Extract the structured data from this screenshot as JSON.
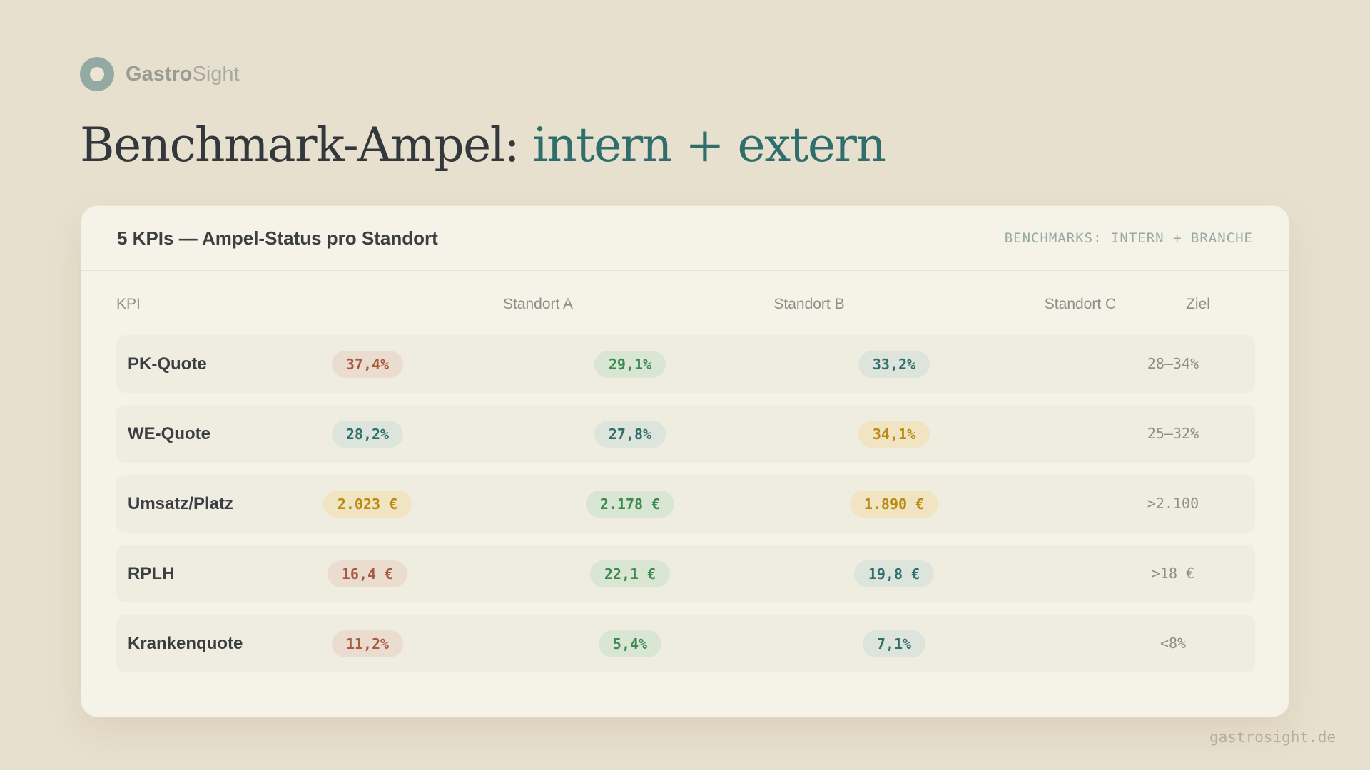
{
  "brand": {
    "name_bold": "Gastro",
    "name_light": "Sight",
    "icon": "ring-logo-icon"
  },
  "headline": {
    "main": "Benchmark-Ampel: ",
    "accent": "intern + extern"
  },
  "card": {
    "title": "5 KPIs — Ampel-Status pro Standort",
    "tag": "BENCHMARKS: INTERN + BRANCHE",
    "columns": {
      "kpi": "KPI",
      "a": "Standort A",
      "b": "Standort B",
      "c": "Standort C",
      "target": "Ziel"
    },
    "rows": [
      {
        "kpi": "PK-Quote",
        "a": {
          "value": "37,4%",
          "status": "red"
        },
        "b": {
          "value": "29,1%",
          "status": "green"
        },
        "c": {
          "value": "33,2%",
          "status": "teal"
        },
        "target": "28–34%"
      },
      {
        "kpi": "WE-Quote",
        "a": {
          "value": "28,2%",
          "status": "teal"
        },
        "b": {
          "value": "27,8%",
          "status": "teal"
        },
        "c": {
          "value": "34,1%",
          "status": "amber"
        },
        "target": "25–32%"
      },
      {
        "kpi": "Umsatz/Platz",
        "a": {
          "value": "2.023 €",
          "status": "amber"
        },
        "b": {
          "value": "2.178 €",
          "status": "green"
        },
        "c": {
          "value": "1.890 €",
          "status": "amber"
        },
        "target": ">2.100"
      },
      {
        "kpi": "RPLH",
        "a": {
          "value": "16,4 €",
          "status": "red"
        },
        "b": {
          "value": "22,1 €",
          "status": "green"
        },
        "c": {
          "value": "19,8 €",
          "status": "teal"
        },
        "target": ">18 €"
      },
      {
        "kpi": "Krankenquote",
        "a": {
          "value": "11,2%",
          "status": "red"
        },
        "b": {
          "value": "5,4%",
          "status": "green"
        },
        "c": {
          "value": "7,1%",
          "status": "teal"
        },
        "target": "<8%"
      }
    ]
  },
  "status_colors": {
    "red": "#a85a40",
    "green": "#3c8a50",
    "teal": "#2f6e6c",
    "amber": "#b98b10"
  },
  "footer": {
    "url": "gastrosight.de"
  }
}
